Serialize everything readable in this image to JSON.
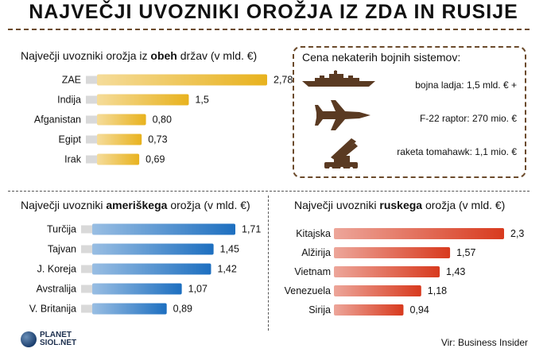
{
  "header": {
    "title": "NAJVEČJI UVOZNIKI OROŽJA IZ ZDA IN RUSIJE"
  },
  "sections": {
    "both": {
      "prefix": "Največji uvozniki orožja iz ",
      "bold": "obeh",
      "suffix": " držav (v mld. €)"
    },
    "us": {
      "prefix": "Največji uvozniki ",
      "bold": "ameriškega",
      "suffix": " orožja (v mld. €)"
    },
    "ru": {
      "prefix": "Največji uvozniki ",
      "bold": "ruskega",
      "suffix": " orožja (v mld. €)"
    }
  },
  "costs": {
    "title": "Cena nekaterih bojnih sistemov:",
    "items": [
      {
        "label": "bojna ladja: 1,5 mld. € +",
        "icon": "warship-icon"
      },
      {
        "label": "F-22 raptor: 270 mio. €",
        "icon": "fighter-jet-icon"
      },
      {
        "label": "raketa tomahawk: 1,1 mio. €",
        "icon": "missile-launcher-icon"
      }
    ]
  },
  "footer": {
    "logo_line1": "PLANET",
    "logo_line2": "SIOL.NET",
    "source": "Vir: Business Insider"
  },
  "colors": {
    "gold": "#e8b21e",
    "blue": "#1d6fc0",
    "red": "#d83a1e",
    "stub": "#d9d9d9",
    "brown": "#5a3a22"
  },
  "chart_data": [
    {
      "type": "bar",
      "orientation": "horizontal",
      "title": "Največji uvozniki orožja iz obeh držav (v mld. €)",
      "categories": [
        "ZAE",
        "Indija",
        "Afganistan",
        "Egipt",
        "Irak"
      ],
      "values": [
        2.78,
        1.5,
        0.8,
        0.73,
        0.69
      ],
      "value_labels": [
        "2,78",
        "1,5",
        "0,80",
        "0,73",
        "0,69"
      ],
      "color": "#e8b21e",
      "xlim": [
        0,
        2.78
      ]
    },
    {
      "type": "bar",
      "orientation": "horizontal",
      "title": "Največji uvozniki ameriškega orožja (v mld. €)",
      "categories": [
        "Turčija",
        "Tajvan",
        "J. Koreja",
        "Avstralija",
        "V. Britanija"
      ],
      "values": [
        1.71,
        1.45,
        1.42,
        1.07,
        0.89
      ],
      "value_labels": [
        "1,71",
        "1,45",
        "1,42",
        "1,07",
        "0,89"
      ],
      "color": "#1d6fc0",
      "xlim": [
        0,
        1.71
      ]
    },
    {
      "type": "bar",
      "orientation": "horizontal",
      "title": "Največji uvozniki ruskega orožja (v mld. €)",
      "categories": [
        "Kitajska",
        "Alžirija",
        "Vietnam",
        "Venezuela",
        "Sirija"
      ],
      "values": [
        2.3,
        1.57,
        1.43,
        1.18,
        0.94
      ],
      "value_labels": [
        "2,3",
        "1,57",
        "1,43",
        "1,18",
        "0,94"
      ],
      "color": "#d83a1e",
      "xlim": [
        0,
        2.3
      ]
    }
  ]
}
